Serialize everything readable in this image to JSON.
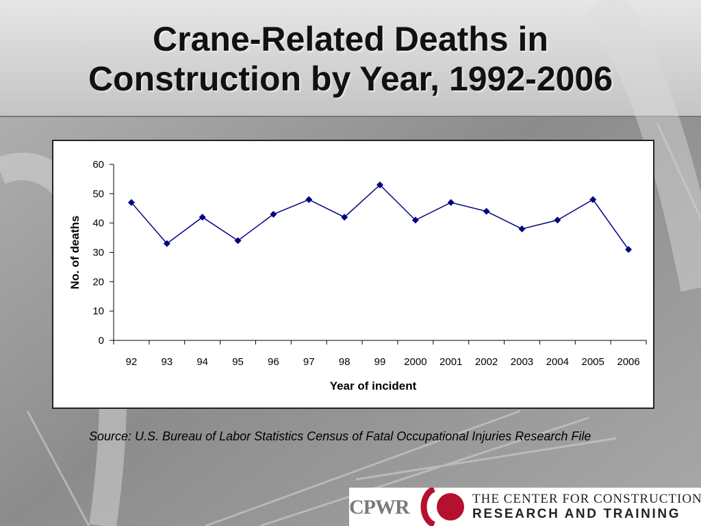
{
  "slide": {
    "title_line1": "Crane-Related Deaths in",
    "title_line2": "Construction by Year, 1992-2006",
    "source": "Source: U.S. Bureau of Labor Statistics Census of Fatal Occupational Injuries Research File"
  },
  "logo": {
    "acronym": "CPWR",
    "line1": "THE CENTER FOR CONSTRUCTION",
    "line2": "RESEARCH AND TRAINING",
    "accent_color": "#b5102d"
  },
  "chart_data": {
    "type": "line",
    "title": "",
    "xlabel": "Year of incident",
    "ylabel": "No. of deaths",
    "categories": [
      "92",
      "93",
      "94",
      "95",
      "96",
      "97",
      "98",
      "99",
      "2000",
      "2001",
      "2002",
      "2003",
      "2004",
      "2005",
      "2006"
    ],
    "series": [
      {
        "values": [
          47,
          33,
          42,
          34,
          43,
          48,
          42,
          53,
          41,
          47,
          44,
          38,
          41,
          48,
          31
        ],
        "color": "#000080",
        "marker": "diamond"
      }
    ],
    "ylim": [
      0,
      60
    ],
    "yticks": [
      0,
      10,
      20,
      30,
      40,
      50,
      60
    ],
    "grid": false,
    "legend": "none"
  }
}
